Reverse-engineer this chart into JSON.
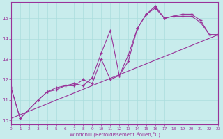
{
  "xlabel": "Windchill (Refroidissement éolien,°C)",
  "bg_color": "#c8ecec",
  "line_color": "#993399",
  "grid_color": "#aadddd",
  "xlim": [
    0,
    23
  ],
  "ylim": [
    9.8,
    15.8
  ],
  "xticks": [
    0,
    1,
    2,
    3,
    4,
    5,
    6,
    7,
    8,
    9,
    10,
    11,
    12,
    13,
    14,
    15,
    16,
    17,
    18,
    19,
    20,
    21,
    22,
    23
  ],
  "yticks": [
    10,
    11,
    12,
    13,
    14,
    15
  ],
  "line1_x": [
    0,
    1,
    3,
    4,
    5,
    6,
    7,
    8,
    9,
    10,
    11,
    12,
    13,
    14,
    15,
    16,
    17,
    18,
    19,
    20,
    21,
    22,
    23
  ],
  "line1_y": [
    11.6,
    10.1,
    11.0,
    11.4,
    11.6,
    11.7,
    11.8,
    11.7,
    12.1,
    13.3,
    14.4,
    12.2,
    13.2,
    14.5,
    15.2,
    15.6,
    15.0,
    15.1,
    15.1,
    15.1,
    14.8,
    14.2,
    14.2
  ],
  "line2_x": [
    0,
    1,
    3,
    4,
    5,
    6,
    7,
    8,
    9,
    10,
    11,
    12,
    13,
    14,
    15,
    16,
    17,
    18,
    19,
    20,
    21,
    22,
    23
  ],
  "line2_y": [
    11.6,
    10.1,
    11.0,
    11.4,
    11.5,
    11.7,
    11.7,
    12.0,
    11.8,
    13.0,
    12.0,
    12.2,
    12.9,
    14.5,
    15.2,
    15.5,
    15.0,
    15.1,
    15.2,
    15.2,
    14.9,
    14.2,
    14.2
  ],
  "line3_x": [
    0,
    23
  ],
  "line3_y": [
    10.1,
    14.2
  ]
}
